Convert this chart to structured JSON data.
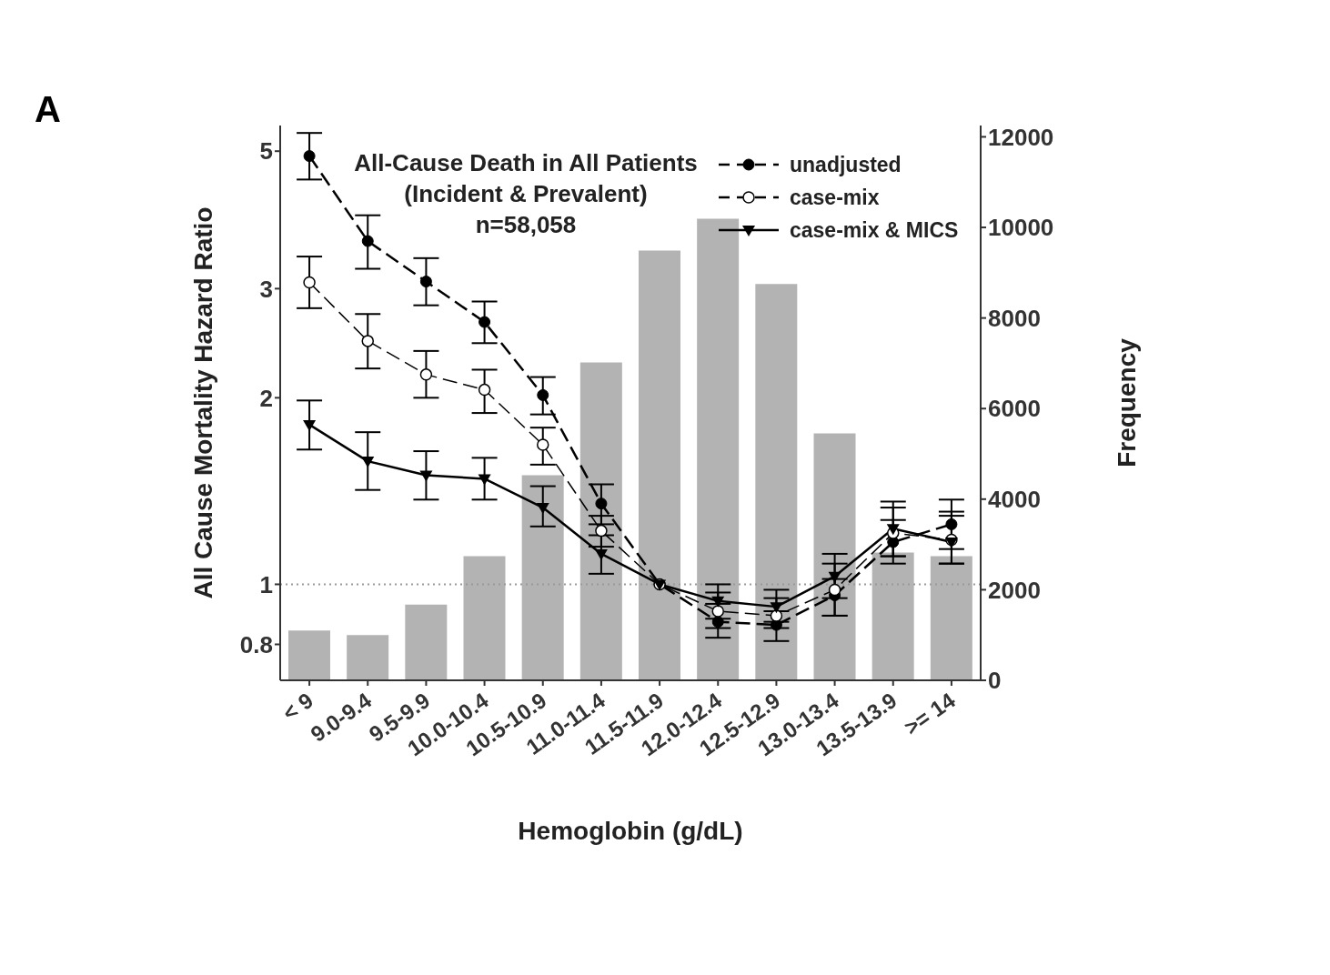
{
  "chart_data": {
    "type": "line",
    "title": "All-Cause Death in All Patients\n(Incident & Prevalent)",
    "subtitle": "n=58,058",
    "annotations": [
      "A"
    ],
    "xlabel": "Hemoglobin (g/dL)",
    "ylabel": "All Cause Mortality Hazard Ratio",
    "y2label": "Frequency",
    "categories": [
      "< 9",
      "9.0-9.4",
      "9.5-9.9",
      "10.0-10.4",
      "10.5-10.9",
      "11.0-11.4",
      "11.5-11.9",
      "12.0-12.4",
      "12.5-12.9",
      "13.0-13.4",
      "13.5-13.9",
      ">= 14"
    ],
    "log": "y",
    "ylim": [
      0.7,
      5.5
    ],
    "yticks": [
      0.8,
      1,
      2,
      3,
      5
    ],
    "y2lim": [
      0,
      12250
    ],
    "y2ticks": [
      0,
      2000,
      4000,
      6000,
      8000,
      10000,
      12000
    ],
    "legend": "top right",
    "grid": false,
    "ref_lines": [
      {
        "axis": "y",
        "value": 1,
        "line_style": "dotted",
        "color": "#999999"
      }
    ],
    "series": [
      {
        "type": "bar",
        "axis": "y2",
        "color": "#b3b3b3",
        "values": [
          1100,
          1000,
          1670,
          2740,
          4530,
          7020,
          9490,
          10190,
          8750,
          5450,
          2820,
          2740
        ]
      },
      {
        "name": "unadjusted",
        "color": "#000000",
        "marker": "circle",
        "line_style": "dashed",
        "values": [
          4.91,
          3.58,
          3.08,
          2.65,
          2.02,
          1.35,
          1,
          0.87,
          0.86,
          0.96,
          1.17,
          1.25
        ],
        "errors": [
          [
            4.5,
            5.35
          ],
          [
            3.23,
            3.94
          ],
          [
            2.82,
            3.36
          ],
          [
            2.45,
            2.86
          ],
          [
            1.88,
            2.16
          ],
          [
            1.25,
            1.45
          ],
          null,
          [
            0.82,
            0.93
          ],
          [
            0.81,
            0.905
          ],
          [
            0.89,
            1.02
          ],
          [
            1.08,
            1.27
          ],
          [
            1.14,
            1.37
          ]
        ]
      },
      {
        "name": "case-mix",
        "color": "#000000",
        "marker": "open-circle",
        "line_style": "dashed",
        "values": [
          3.07,
          2.47,
          2.18,
          2.06,
          1.68,
          1.22,
          1,
          0.905,
          0.89,
          0.98,
          1.21,
          1.18
        ],
        "errors": [
          [
            2.79,
            3.38
          ],
          [
            2.23,
            2.73
          ],
          [
            2.0,
            2.38
          ],
          [
            1.89,
            2.22
          ],
          [
            1.56,
            1.79
          ],
          [
            1.15,
            1.29
          ],
          null,
          [
            0.85,
            0.97
          ],
          [
            0.85,
            0.95
          ],
          [
            0.89,
            1.08
          ],
          [
            1.11,
            1.33
          ],
          [
            1.08,
            1.29
          ]
        ]
      },
      {
        "name": "case-mix & MICS",
        "color": "#000000",
        "marker": "triangle",
        "line_style": "solid",
        "values": [
          1.81,
          1.58,
          1.5,
          1.48,
          1.33,
          1.12,
          1,
          0.94,
          0.92,
          1.03,
          1.23,
          1.17
        ],
        "errors": [
          [
            1.65,
            1.98
          ],
          [
            1.42,
            1.76
          ],
          [
            1.37,
            1.64
          ],
          [
            1.37,
            1.6
          ],
          [
            1.24,
            1.44
          ],
          [
            1.04,
            1.2
          ],
          null,
          [
            0.88,
            1.0
          ],
          [
            0.87,
            0.98
          ],
          [
            0.95,
            1.12
          ],
          [
            1.11,
            1.36
          ],
          [
            1.08,
            1.31
          ]
        ]
      }
    ]
  }
}
